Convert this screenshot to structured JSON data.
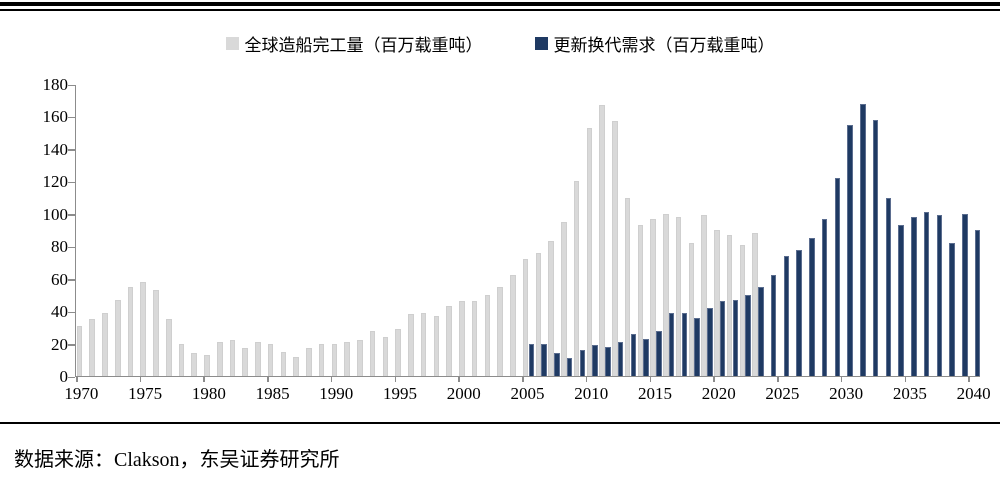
{
  "chart_data": {
    "type": "bar",
    "title": "",
    "unit": "百万载重吨",
    "legend_position": "top",
    "gridlines": false,
    "y_axis": {
      "min": 0,
      "max": 180,
      "step": 20
    },
    "x_axis": {
      "first_year": 1970,
      "last_year": 2040,
      "label_step": 5
    },
    "series": [
      {
        "name": "全球造船完工量（百万载重吨）",
        "color": "#d9d9d9",
        "border_color": "#cfcfcf",
        "start_year": 1970,
        "values": [
          31,
          35,
          39,
          47,
          55,
          58,
          53,
          35,
          20,
          14,
          13,
          21,
          22,
          17,
          21,
          20,
          15,
          12,
          17,
          20,
          20,
          21,
          22,
          28,
          24,
          29,
          38,
          39,
          37,
          43,
          46,
          46,
          50,
          55,
          62,
          72,
          76,
          83,
          95,
          120,
          153,
          167,
          157,
          110,
          93,
          97,
          100,
          98,
          82,
          99,
          90,
          87,
          81,
          88
        ]
      },
      {
        "name": "更新换代需求（百万载重吨）",
        "color": "#1f3a63",
        "border_color": "#5b6d8f",
        "start_year": 2005,
        "values": [
          20,
          20,
          14,
          11,
          16,
          19,
          18,
          21,
          26,
          23,
          28,
          39,
          39,
          36,
          42,
          46,
          47,
          50,
          55,
          62,
          74,
          78,
          85,
          97,
          122,
          155,
          168,
          158,
          110,
          93,
          98,
          101,
          99,
          82,
          100,
          90
        ]
      }
    ],
    "source_note": "数据来源：Clakson，东吴证券研究所"
  },
  "colors": {
    "axis": "#8c8c8c",
    "rule": "#000000",
    "text": "#000000"
  }
}
